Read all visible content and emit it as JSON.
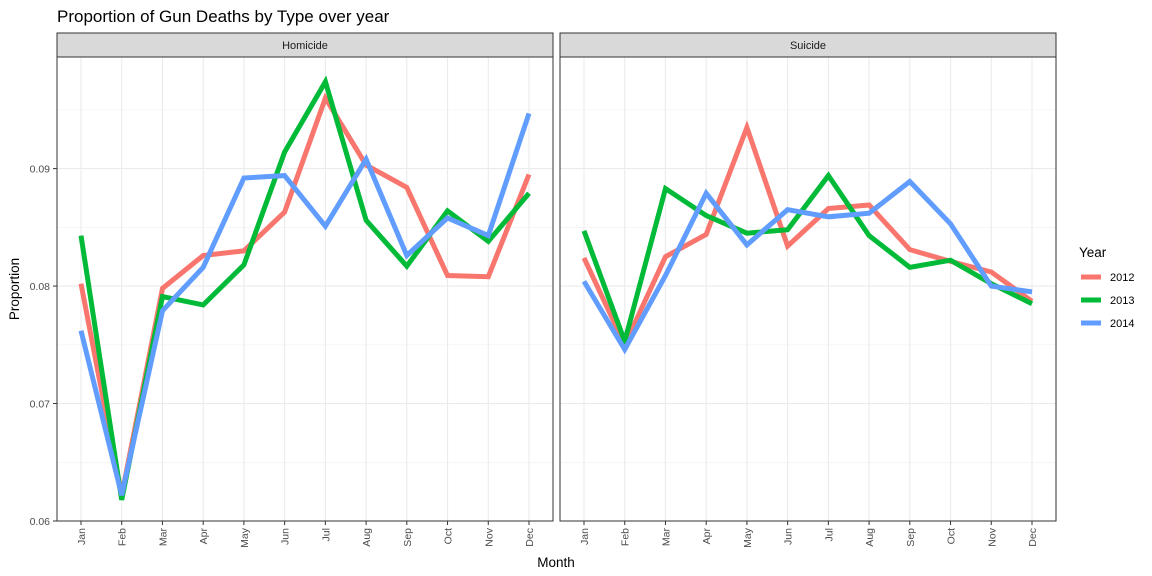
{
  "chart_data": {
    "type": "line",
    "title": "Proportion of Gun Deaths by Type over year",
    "xlabel": "Month",
    "ylabel": "Proportion",
    "ylim": [
      0.06,
      0.0995
    ],
    "yticks": [
      0.06,
      0.07,
      0.08,
      0.09
    ],
    "ytick_labels": [
      "0.06",
      "0.07",
      "0.08",
      "0.09"
    ],
    "categories": [
      "Jan",
      "Feb",
      "Mar",
      "Apr",
      "May",
      "Jun",
      "Jul",
      "Aug",
      "Sep",
      "Oct",
      "Nov",
      "Dec"
    ],
    "grid": true,
    "legend": {
      "title": "Year",
      "position": "right"
    },
    "series_colors": {
      "2012": "#F8766D",
      "2013": "#00BA38",
      "2014": "#619CFF"
    },
    "facets": [
      {
        "name": "Homicide",
        "series": [
          {
            "name": "2012",
            "values": [
              0.0802,
              0.0622,
              0.0798,
              0.0826,
              0.083,
              0.0863,
              0.096,
              0.0903,
              0.0884,
              0.0809,
              0.0808,
              0.0895
            ]
          },
          {
            "name": "2013",
            "values": [
              0.0843,
              0.0618,
              0.0791,
              0.0784,
              0.0818,
              0.0914,
              0.0974,
              0.0856,
              0.0817,
              0.0864,
              0.0838,
              0.0879
            ]
          },
          {
            "name": "2014",
            "values": [
              0.0762,
              0.0622,
              0.0779,
              0.0816,
              0.0892,
              0.0894,
              0.0851,
              0.0908,
              0.0826,
              0.0858,
              0.0843,
              0.0947
            ]
          }
        ]
      },
      {
        "name": "Suicide",
        "series": [
          {
            "name": "2012",
            "values": [
              0.0824,
              0.075,
              0.0825,
              0.0844,
              0.0935,
              0.0834,
              0.0866,
              0.0869,
              0.0831,
              0.0821,
              0.0812,
              0.0787
            ]
          },
          {
            "name": "2013",
            "values": [
              0.0847,
              0.0753,
              0.0883,
              0.086,
              0.0845,
              0.0848,
              0.0894,
              0.0843,
              0.0816,
              0.0822,
              0.0802,
              0.0785
            ]
          },
          {
            "name": "2014",
            "values": [
              0.0804,
              0.0746,
              0.0809,
              0.0879,
              0.0835,
              0.0865,
              0.0859,
              0.0862,
              0.0889,
              0.0853,
              0.08,
              0.0795
            ]
          }
        ]
      }
    ]
  }
}
